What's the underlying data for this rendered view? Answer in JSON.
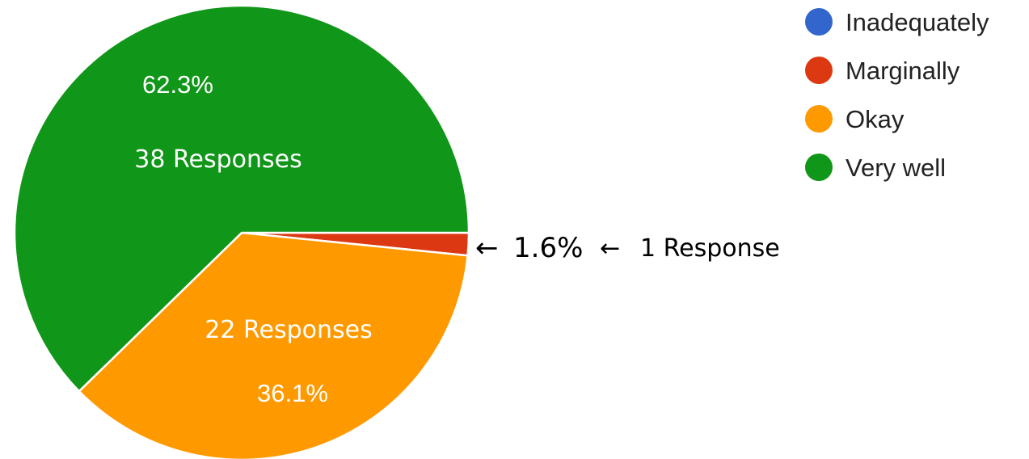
{
  "chart_data": {
    "type": "pie",
    "slices": [
      {
        "name": "Inadequately",
        "percent": 0.0,
        "responses": 0,
        "color": "#3366cc",
        "pct_label": "",
        "responses_label": ""
      },
      {
        "name": "Marginally",
        "percent": 1.6,
        "responses": 1,
        "color": "#dc3912",
        "pct_label": "1.6%",
        "responses_label": "1 Response"
      },
      {
        "name": "Okay",
        "percent": 36.1,
        "responses": 22,
        "color": "#ff9900",
        "pct_label": "36.1%",
        "responses_label": "22 Responses"
      },
      {
        "name": "Very well",
        "percent": 62.3,
        "responses": 38,
        "color": "#109618",
        "pct_label": "62.3%",
        "responses_label": "38 Responses"
      }
    ],
    "legend": {
      "position": "top-right",
      "items": [
        "Inadequately",
        "Marginally",
        "Okay",
        "Very well"
      ]
    },
    "annotation": {
      "arrow": "←",
      "pct": "1.6%",
      "responses": "1 Response"
    }
  }
}
